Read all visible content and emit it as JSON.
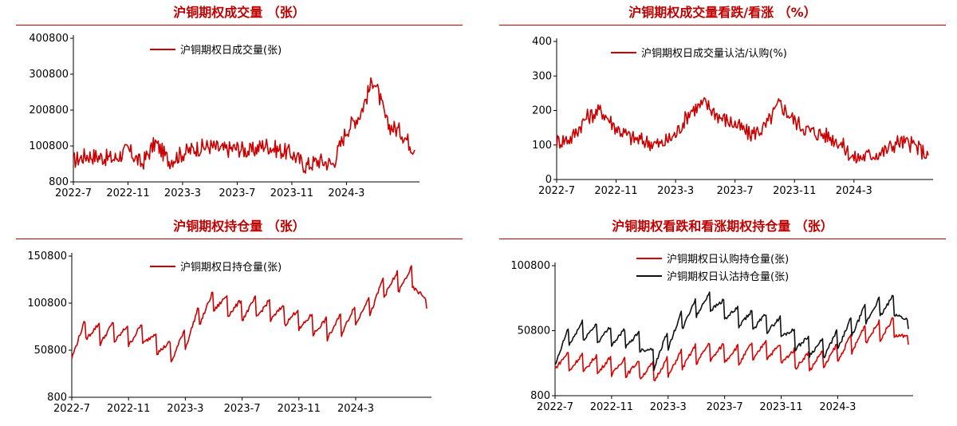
{
  "chart_data": [
    {
      "type": "line",
      "title": "沪铜期权成交量 （张）",
      "xlabel": "",
      "ylabel": "",
      "ylim": [
        800,
        400800
      ],
      "yticks": [
        "400800",
        "300800",
        "200800",
        "100800",
        "800"
      ],
      "xticks": [
        "2022-7",
        "2022-11",
        "2023-3",
        "2023-7",
        "2023-11",
        "2024-3"
      ],
      "legend_position": "top-left",
      "series": [
        {
          "name": "沪铜期权日成交量(张)",
          "color": "#cc0000",
          "x": [
            "2022-07",
            "2022-08",
            "2022-09",
            "2022-10",
            "2022-11",
            "2022-12",
            "2023-01",
            "2023-02",
            "2023-03",
            "2023-04",
            "2023-05",
            "2023-06",
            "2023-07",
            "2023-08",
            "2023-09",
            "2023-10",
            "2023-11",
            "2023-12",
            "2024-01",
            "2024-02",
            "2024-03",
            "2024-04",
            "2024-05",
            "2024-06",
            "2024-07",
            "2024-08"
          ],
          "values": [
            60000,
            75000,
            70000,
            65000,
            90000,
            50000,
            110000,
            60000,
            80000,
            95000,
            100000,
            90000,
            95000,
            85000,
            105000,
            90000,
            80000,
            45000,
            60000,
            50000,
            145000,
            190000,
            290000,
            160000,
            140000,
            90000
          ]
        }
      ]
    },
    {
      "type": "line",
      "title": "沪铜期权成交量看跌/看涨 （%）",
      "xlabel": "",
      "ylabel": "",
      "ylim": [
        0,
        400
      ],
      "yticks": [
        "400",
        "300",
        "200",
        "100",
        "0"
      ],
      "xticks": [
        "2022-7",
        "2022-11",
        "2023-3",
        "2023-7",
        "2023-11",
        "2024-3"
      ],
      "legend_position": "top-left",
      "series": [
        {
          "name": "沪铜期权日成交量认沽/认购(%)",
          "color": "#cc0000",
          "x": [
            "2022-07",
            "2022-08",
            "2022-09",
            "2022-10",
            "2022-11",
            "2022-12",
            "2023-01",
            "2023-02",
            "2023-03",
            "2023-04",
            "2023-05",
            "2023-06",
            "2023-07",
            "2023-08",
            "2023-09",
            "2023-10",
            "2023-11",
            "2023-12",
            "2024-01",
            "2024-02",
            "2024-03",
            "2024-04",
            "2024-05",
            "2024-06",
            "2024-07",
            "2024-08"
          ],
          "values": [
            110,
            120,
            180,
            200,
            150,
            120,
            110,
            100,
            130,
            200,
            220,
            180,
            160,
            130,
            150,
            220,
            170,
            140,
            130,
            110,
            60,
            70,
            80,
            110,
            100,
            70
          ]
        }
      ]
    },
    {
      "type": "line",
      "title": "沪铜期权持仓量 （张）",
      "xlabel": "",
      "ylabel": "",
      "ylim": [
        800,
        150800
      ],
      "yticks": [
        "150800",
        "100800",
        "50800",
        "800"
      ],
      "xticks": [
        "2022-7",
        "2022-11",
        "2023-3",
        "2023-7",
        "2023-11",
        "2024-3"
      ],
      "legend_position": "top-left",
      "series": [
        {
          "name": "沪铜期权日持仓量(张)",
          "color": "#cc0000",
          "x": [
            "2022-07",
            "2022-08",
            "2022-09",
            "2022-10",
            "2022-11",
            "2022-12",
            "2023-01",
            "2023-02",
            "2023-03",
            "2023-04",
            "2023-05",
            "2023-06",
            "2023-07",
            "2023-08",
            "2023-09",
            "2023-10",
            "2023-11",
            "2023-12",
            "2024-01",
            "2024-02",
            "2024-03",
            "2024-04",
            "2024-05",
            "2024-06",
            "2024-07",
            "2024-08"
          ],
          "values": [
            55000,
            75000,
            70000,
            72000,
            68000,
            70000,
            60000,
            50000,
            65000,
            90000,
            105000,
            100000,
            95000,
            98000,
            95000,
            90000,
            85000,
            80000,
            75000,
            80000,
            90000,
            100000,
            120000,
            125000,
            130000,
            95000
          ]
        }
      ]
    },
    {
      "type": "line",
      "title": "沪铜期权看跌和看涨期权持仓量 （张）",
      "xlabel": "",
      "ylabel": "",
      "ylim": [
        800,
        100800
      ],
      "yticks": [
        "100800",
        "50800",
        "800"
      ],
      "xticks": [
        "2022-7",
        "2022-11",
        "2023-3",
        "2023-7",
        "2023-11",
        "2024-3"
      ],
      "legend_position": "top-left",
      "series": [
        {
          "name": "沪铜期权日认购持仓量(张)",
          "color": "#dd0000",
          "x": [
            "2022-07",
            "2022-08",
            "2022-09",
            "2022-10",
            "2022-11",
            "2022-12",
            "2023-01",
            "2023-02",
            "2023-03",
            "2023-04",
            "2023-05",
            "2023-06",
            "2023-07",
            "2023-08",
            "2023-09",
            "2023-10",
            "2023-11",
            "2023-12",
            "2024-01",
            "2024-02",
            "2024-03",
            "2024-04",
            "2024-05",
            "2024-06",
            "2024-07",
            "2024-08"
          ],
          "values": [
            30000,
            28000,
            27000,
            26000,
            25000,
            24000,
            22000,
            20000,
            24000,
            30000,
            34000,
            36000,
            35000,
            33000,
            36000,
            38000,
            34000,
            30000,
            28000,
            30000,
            35000,
            42000,
            50000,
            52000,
            55000,
            40000
          ]
        },
        {
          "name": "沪铜期权日认沽持仓量(张)",
          "color": "#111111",
          "x": [
            "2022-07",
            "2022-08",
            "2022-09",
            "2022-10",
            "2022-11",
            "2022-12",
            "2023-01",
            "2023-02",
            "2023-03",
            "2023-04",
            "2023-05",
            "2023-06",
            "2023-07",
            "2023-08",
            "2023-09",
            "2023-10",
            "2023-11",
            "2023-12",
            "2024-01",
            "2024-02",
            "2024-03",
            "2024-04",
            "2024-05",
            "2024-06",
            "2024-07",
            "2024-08"
          ],
          "values": [
            32000,
            48000,
            52000,
            50000,
            48000,
            46000,
            44000,
            30000,
            45000,
            60000,
            70000,
            75000,
            68000,
            62000,
            60000,
            58000,
            55000,
            45000,
            40000,
            38000,
            45000,
            55000,
            65000,
            70000,
            72000,
            52000
          ]
        }
      ]
    }
  ]
}
